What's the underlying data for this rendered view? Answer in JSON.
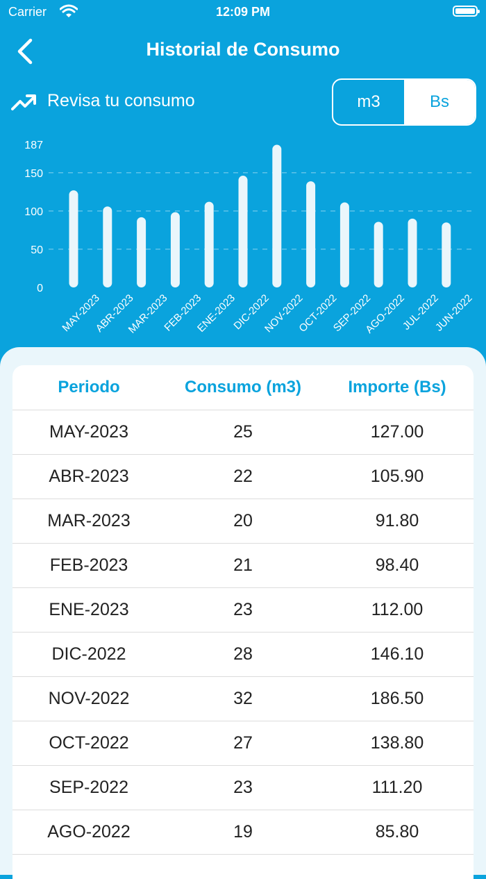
{
  "status_bar": {
    "carrier": "Carrier",
    "time": "12:09 PM"
  },
  "nav": {
    "title": "Historial de Consumo"
  },
  "header": {
    "label": "Revisa tu consumo"
  },
  "toggle": {
    "options": [
      "m3",
      "Bs"
    ],
    "selected": "m3"
  },
  "colors": {
    "brand": "#0aa3dd",
    "bar": "#eaf6fb",
    "panel": "#eaf6fb"
  },
  "chart_data": {
    "type": "bar",
    "categories": [
      "MAY-2023",
      "ABR-2023",
      "MAR-2023",
      "FEB-2023",
      "ENE-2023",
      "DIC-2022",
      "NOV-2022",
      "OCT-2022",
      "SEP-2022",
      "AGO-2022",
      "JUL-2022",
      "JUN-2022"
    ],
    "values": [
      127.0,
      105.9,
      91.8,
      98.4,
      112.0,
      146.1,
      186.5,
      138.8,
      111.2,
      85.8,
      90,
      85
    ],
    "yticks": [
      "0",
      "50",
      "100",
      "150",
      "187"
    ],
    "ylim": [
      0,
      187
    ],
    "grid": true
  },
  "table": {
    "headers": [
      "Periodo",
      "Consumo (m3)",
      "Importe (Bs)"
    ],
    "rows": [
      [
        "MAY-2023",
        "25",
        "127.00"
      ],
      [
        "ABR-2023",
        "22",
        "105.90"
      ],
      [
        "MAR-2023",
        "20",
        "91.80"
      ],
      [
        "FEB-2023",
        "21",
        "98.40"
      ],
      [
        "ENE-2023",
        "23",
        "112.00"
      ],
      [
        "DIC-2022",
        "28",
        "146.10"
      ],
      [
        "NOV-2022",
        "32",
        "186.50"
      ],
      [
        "OCT-2022",
        "27",
        "138.80"
      ],
      [
        "SEP-2022",
        "23",
        "111.20"
      ],
      [
        "AGO-2022",
        "19",
        "85.80"
      ]
    ]
  }
}
